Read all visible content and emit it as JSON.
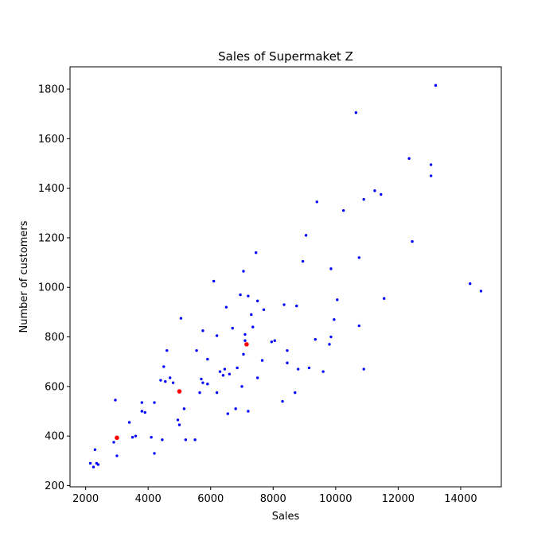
{
  "chart_data": {
    "type": "scatter",
    "title": "Sales of Supermaket Z",
    "xlabel": "Sales",
    "ylabel": "Number of customers",
    "xlim": [
      1500,
      15300
    ],
    "ylim": [
      195,
      1890
    ],
    "xticks": [
      2000,
      4000,
      6000,
      8000,
      10000,
      12000,
      14000
    ],
    "yticks": [
      200,
      400,
      600,
      800,
      1000,
      1200,
      1400,
      1600,
      1800
    ],
    "grid": false,
    "legend": "none",
    "series": [
      {
        "color": "#0000ff",
        "points": [
          [
            2150,
            290
          ],
          [
            2250,
            275
          ],
          [
            2300,
            345
          ],
          [
            2350,
            290
          ],
          [
            2400,
            285
          ],
          [
            2900,
            375
          ],
          [
            2950,
            545
          ],
          [
            3000,
            320
          ],
          [
            3400,
            455
          ],
          [
            3500,
            395
          ],
          [
            3600,
            400
          ],
          [
            3800,
            535
          ],
          [
            3800,
            500
          ],
          [
            3900,
            495
          ],
          [
            4100,
            395
          ],
          [
            4200,
            535
          ],
          [
            4200,
            330
          ],
          [
            4400,
            625
          ],
          [
            4450,
            385
          ],
          [
            4550,
            620
          ],
          [
            4500,
            680
          ],
          [
            4600,
            745
          ],
          [
            4700,
            635
          ],
          [
            4800,
            615
          ],
          [
            4950,
            465
          ],
          [
            5000,
            445
          ],
          [
            5050,
            875
          ],
          [
            5150,
            510
          ],
          [
            5200,
            385
          ],
          [
            5500,
            385
          ],
          [
            5550,
            745
          ],
          [
            5650,
            575
          ],
          [
            5700,
            630
          ],
          [
            5750,
            615
          ],
          [
            5750,
            825
          ],
          [
            5900,
            610
          ],
          [
            5900,
            710
          ],
          [
            6100,
            1025
          ],
          [
            6200,
            805
          ],
          [
            6200,
            575
          ],
          [
            6300,
            660
          ],
          [
            6400,
            645
          ],
          [
            6500,
            920
          ],
          [
            6450,
            670
          ],
          [
            6550,
            490
          ],
          [
            6600,
            650
          ],
          [
            6700,
            835
          ],
          [
            6800,
            510
          ],
          [
            6850,
            675
          ],
          [
            6950,
            970
          ],
          [
            7000,
            600
          ],
          [
            7050,
            1065
          ],
          [
            7050,
            730
          ],
          [
            7100,
            785
          ],
          [
            7100,
            810
          ],
          [
            7200,
            965
          ],
          [
            7200,
            500
          ],
          [
            7300,
            890
          ],
          [
            7350,
            840
          ],
          [
            7450,
            1140
          ],
          [
            7500,
            635
          ],
          [
            7500,
            945
          ],
          [
            7650,
            705
          ],
          [
            7700,
            910
          ],
          [
            7950,
            780
          ],
          [
            8050,
            785
          ],
          [
            8300,
            540
          ],
          [
            8350,
            930
          ],
          [
            8450,
            695
          ],
          [
            8450,
            745
          ],
          [
            8700,
            575
          ],
          [
            8750,
            925
          ],
          [
            8800,
            670
          ],
          [
            8950,
            1105
          ],
          [
            9050,
            1210
          ],
          [
            9150,
            675
          ],
          [
            9350,
            790
          ],
          [
            9400,
            1345
          ],
          [
            9600,
            660
          ],
          [
            9800,
            770
          ],
          [
            9850,
            1075
          ],
          [
            9850,
            800
          ],
          [
            9950,
            870
          ],
          [
            10050,
            950
          ],
          [
            10250,
            1310
          ],
          [
            10650,
            1705
          ],
          [
            10750,
            1120
          ],
          [
            10750,
            845
          ],
          [
            10900,
            1355
          ],
          [
            10900,
            670
          ],
          [
            11250,
            1390
          ],
          [
            11450,
            1375
          ],
          [
            11550,
            955
          ],
          [
            12350,
            1520
          ],
          [
            12450,
            1185
          ],
          [
            13050,
            1495
          ],
          [
            13050,
            1450
          ],
          [
            13200,
            1815
          ],
          [
            14300,
            1015
          ],
          [
            14650,
            985
          ]
        ]
      },
      {
        "color": "#ff0000",
        "points": [
          [
            3000,
            393
          ],
          [
            5000,
            580
          ],
          [
            7150,
            770
          ]
        ]
      }
    ]
  }
}
